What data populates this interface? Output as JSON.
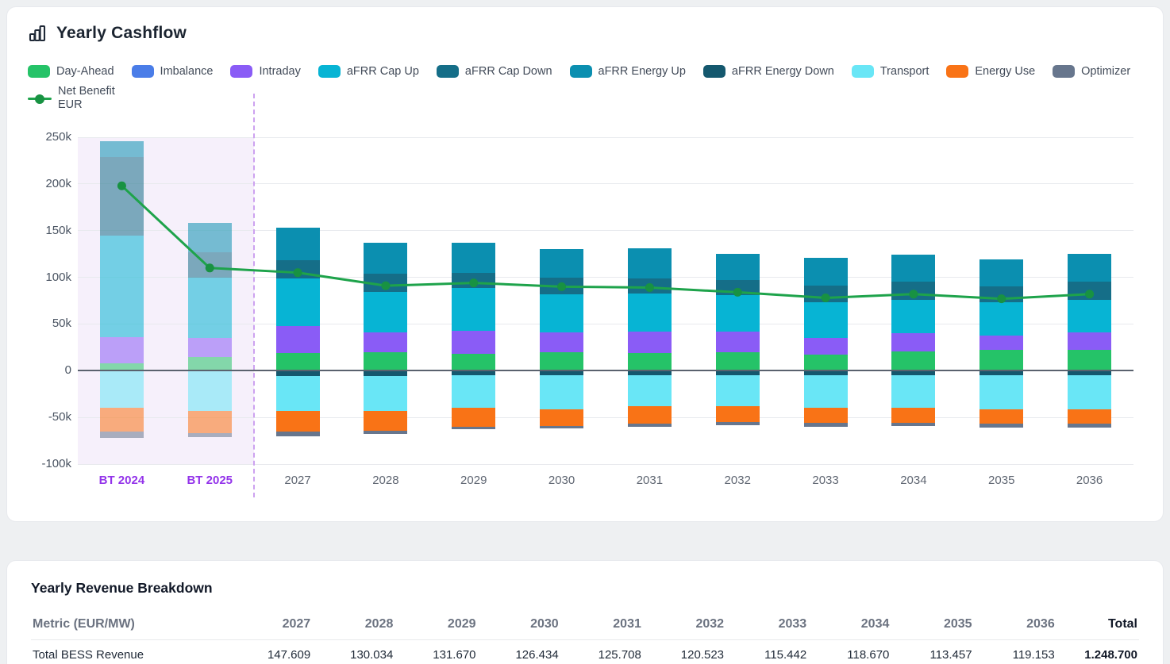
{
  "page": {
    "background": "#eef0f2"
  },
  "chart": {
    "title": "Yearly Cashflow"
  },
  "chart_data": {
    "type": "bar",
    "subtype": "stacked-bars-with-net-benefit-line",
    "title": "Yearly Cashflow",
    "unit": "EUR (thousands)",
    "categories": [
      "BT 2024",
      "BT 2025",
      "2027",
      "2028",
      "2029",
      "2030",
      "2031",
      "2032",
      "2033",
      "2034",
      "2035",
      "2036"
    ],
    "backtest_categories": [
      "BT 2024",
      "BT 2025"
    ],
    "series": [
      {
        "name": "Day-Ahead",
        "color": "#25c368",
        "values": [
          8,
          15,
          19,
          20,
          18,
          20,
          19,
          20,
          17,
          21,
          22,
          22
        ]
      },
      {
        "name": "Imbalance",
        "color": "#4a7de8",
        "values": [
          0,
          0,
          0,
          0,
          0,
          0,
          0,
          0,
          0,
          0,
          0,
          0
        ]
      },
      {
        "name": "Intraday",
        "color": "#8a5cf6",
        "values": [
          28,
          20,
          29,
          21,
          25,
          21,
          23,
          22,
          18,
          19,
          16,
          19
        ]
      },
      {
        "name": "aFRR Cap Up",
        "color": "#07b4d4",
        "values": [
          109,
          65,
          51,
          43,
          46,
          41,
          41,
          39,
          38,
          36,
          35,
          35
        ]
      },
      {
        "name": "aFRR Cap Down",
        "color": "#156e88",
        "values": [
          84,
          27,
          19,
          20,
          16,
          18,
          16,
          16,
          18,
          19,
          17,
          19
        ]
      },
      {
        "name": "aFRR Energy Up",
        "color": "#0b8fb0",
        "values": [
          17,
          31,
          35,
          33,
          32,
          30,
          32,
          28,
          30,
          29,
          29,
          30
        ]
      },
      {
        "name": "aFRR Energy Down",
        "color": "#14586e",
        "values": [
          0,
          0,
          -6,
          -6,
          -5,
          -5,
          -5,
          -5,
          -5,
          -5,
          -5,
          -5
        ]
      },
      {
        "name": "Transport",
        "color": "#69e6f6",
        "values": [
          -40,
          -43,
          -37,
          -37,
          -35,
          -36,
          -33,
          -33,
          -35,
          -35,
          -36,
          -36
        ]
      },
      {
        "name": "Energy Use",
        "color": "#f97316",
        "values": [
          -25,
          -24,
          -22,
          -21,
          -20,
          -18,
          -19,
          -17,
          -16,
          -16,
          -16,
          -16
        ]
      },
      {
        "name": "Optimizer",
        "color": "#67768d",
        "values": [
          -7,
          -4,
          -5,
          -4,
          -3,
          -3,
          -3,
          -3,
          -4,
          -3,
          -4,
          -4
        ]
      }
    ],
    "line_series": {
      "name": "Net Benefit EUR",
      "legend_lines": [
        "Net Benefit",
        "EUR"
      ],
      "color": "#1ea34b",
      "point_color": "#189242",
      "values": [
        198,
        110,
        105,
        91,
        94,
        90,
        89,
        84,
        78,
        82,
        77,
        82
      ]
    },
    "ylim": [
      -100,
      250
    ],
    "y_tick_values": [
      250,
      200,
      150,
      100,
      50,
      0,
      -50,
      -100
    ],
    "y_tick_labels": [
      "250k",
      "200k",
      "150k",
      "100k",
      "50k",
      "0",
      "-50k",
      "-100k"
    ],
    "grid": true,
    "legend_position": "top",
    "backtest_region": {
      "bg_color": "#f6f0fb",
      "divider_color": "#cda2f0",
      "label_color": "#9333ea"
    }
  },
  "table": {
    "title": "Yearly Revenue Breakdown",
    "headers": [
      "Metric (EUR/MW)",
      "2027",
      "2028",
      "2029",
      "2030",
      "2031",
      "2032",
      "2033",
      "2034",
      "2035",
      "2036",
      "Total"
    ],
    "rows": [
      {
        "metric": "Total BESS Revenue",
        "values": [
          "147.609",
          "130.034",
          "131.670",
          "126.434",
          "125.708",
          "120.523",
          "115.442",
          "118.670",
          "113.457",
          "119.153",
          "1.248.700"
        ]
      }
    ]
  }
}
